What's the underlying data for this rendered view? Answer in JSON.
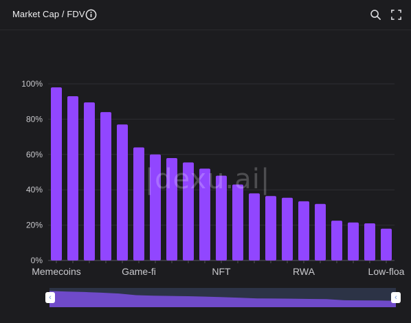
{
  "header": {
    "title": "Market Cap / FDV",
    "icons": [
      "info-icon",
      "search-icon",
      "expand-icon"
    ]
  },
  "watermark": "|dexu.ai|",
  "colors": {
    "background": "#1c1c1f",
    "bar": "#9146ff",
    "grid": "#2e2e33",
    "zoom_track": "#2c3346",
    "zoom_fill": "#7b4fe0"
  },
  "chart_data": {
    "type": "bar",
    "title": "Market Cap / FDV",
    "ylim": [
      0,
      100
    ],
    "y_ticks": [
      "0%",
      "20%",
      "40%",
      "60%",
      "80%",
      "100%"
    ],
    "x_tick_labels": [
      {
        "index": 0,
        "label": "Memecoins"
      },
      {
        "index": 5,
        "label": "Game-fi"
      },
      {
        "index": 10,
        "label": "NFT"
      },
      {
        "index": 15,
        "label": "RWA"
      },
      {
        "index": 20,
        "label": "Low-floa"
      }
    ],
    "values": [
      98,
      93,
      89.5,
      84,
      77,
      64,
      60,
      58,
      55.5,
      52,
      48,
      43,
      38,
      36.5,
      35.5,
      33.5,
      32,
      22.5,
      21.5,
      21,
      18
    ],
    "grid": true
  }
}
